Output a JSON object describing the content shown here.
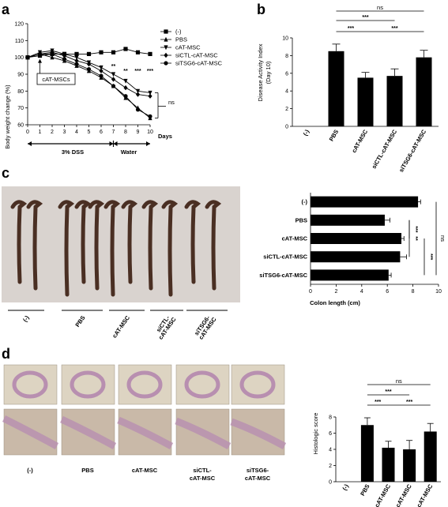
{
  "figure": {
    "panel_letters": [
      "a",
      "b",
      "c",
      "d"
    ]
  },
  "panel_a": {
    "ylabel": "Body weight change (%)",
    "xlabel": "Days",
    "annotation": "cAT-MSCs",
    "dss_label": "3% DSS",
    "water_label": "Water",
    "ns_label": "ns",
    "sig_labels": [
      {
        "day": 7,
        "text": "**"
      },
      {
        "day": 8,
        "text": "**"
      },
      {
        "day": 9,
        "text": "***"
      },
      {
        "day": 10,
        "text": "***"
      }
    ]
  },
  "panel_b": {
    "ylabel": "Disease Activity Index",
    "ylabel2": "(Day 10)",
    "brackets": [
      {
        "from": 1,
        "to": 4,
        "text": "ns"
      },
      {
        "from": 1,
        "to": 3,
        "text": "***"
      },
      {
        "from": 1,
        "to": 2,
        "text": "***"
      },
      {
        "from": 2,
        "to": 4,
        "text": "***"
      }
    ]
  },
  "panel_c": {
    "xlabel": "Colon length (cm)",
    "photo_labels": [
      "(-)",
      "PBS",
      "cAT-MSC",
      "siCTL-\ncAT-MSC",
      "siTSG6-\ncAT-MSC"
    ],
    "brackets": [
      {
        "from": 1,
        "to": 2,
        "text": "***"
      },
      {
        "from": 1,
        "to": 3,
        "text": "**"
      },
      {
        "from": 2,
        "to": 4,
        "text": "***"
      },
      {
        "from": 0,
        "to": 4,
        "text": "ns"
      }
    ]
  },
  "panel_d": {
    "ylabel": "Histologic score",
    "photo_labels": [
      "(-)",
      "PBS",
      "cAT-MSC",
      "siCTL-\ncAT-MSC",
      "siTSG6-\ncAT-MSC"
    ],
    "brackets": [
      {
        "from": 1,
        "to": 4,
        "text": "ns"
      },
      {
        "from": 1,
        "to": 3,
        "text": "***"
      },
      {
        "from": 1,
        "to": 2,
        "text": "***"
      },
      {
        "from": 2,
        "to": 4,
        "text": "***"
      }
    ]
  },
  "colors": {
    "bar": "#000000",
    "photo_bg": "#d9d3cf",
    "colon_dark": "#4a2f23",
    "histo_bg": "#c9b9a8",
    "histo_tissue": "#b88fb0"
  },
  "chart_data": [
    {
      "type": "line",
      "xlabel": "Days",
      "ylabel": "Body weight change (%)",
      "x": [
        0,
        1,
        2,
        3,
        4,
        5,
        6,
        7,
        8,
        9,
        10
      ],
      "xlim": [
        0,
        10
      ],
      "ylim": [
        60,
        120
      ],
      "yticks": [
        60,
        70,
        80,
        90,
        100,
        110,
        120
      ],
      "legend_position": "right",
      "series": [
        {
          "name": "(-)",
          "marker": "square",
          "values": [
            100,
            101,
            102,
            102,
            102,
            102,
            103,
            103,
            105,
            103,
            102
          ]
        },
        {
          "name": "PBS",
          "marker": "triangle-up",
          "values": [
            100,
            102,
            100,
            98,
            95,
            92,
            88,
            83,
            76,
            70,
            64
          ]
        },
        {
          "name": "cAT-MSC",
          "marker": "triangle-down",
          "values": [
            100,
            103,
            104,
            102,
            100,
            97,
            94,
            90,
            86,
            80,
            79
          ]
        },
        {
          "name": "siCTL-cAT-MSC",
          "marker": "diamond",
          "values": [
            100,
            102,
            103,
            101,
            98,
            96,
            92,
            87,
            82,
            78,
            77
          ]
        },
        {
          "name": "siTSG6-cAT-MSC",
          "marker": "circle",
          "values": [
            100,
            102,
            102,
            99,
            96,
            93,
            89,
            83,
            77,
            69,
            65
          ]
        }
      ]
    },
    {
      "type": "bar",
      "ylabel": "Disease Activity Index (Day 10)",
      "categories": [
        "(-)",
        "PBS",
        "cAT-MSC",
        "siCTL-cAT-MSC",
        "siTSG6-cAT-MSC"
      ],
      "values": [
        0,
        8.5,
        5.5,
        5.7,
        7.8
      ],
      "errors": [
        0,
        0.8,
        0.6,
        0.8,
        0.8
      ],
      "ylim": [
        0,
        10
      ],
      "yticks": [
        0,
        2,
        4,
        6,
        8,
        10
      ]
    },
    {
      "type": "bar",
      "orientation": "horizontal",
      "xlabel": "Colon length (cm)",
      "categories": [
        "(-)",
        "PBS",
        "cAT-MSC",
        "siCTL-cAT-MSC",
        "siTSG6-cAT-MSC"
      ],
      "values": [
        8.4,
        5.8,
        7.1,
        7.0,
        6.1
      ],
      "errors": [
        0.2,
        0.4,
        0.2,
        0.5,
        0.2
      ],
      "xlim": [
        0,
        10
      ],
      "xticks": [
        0,
        2,
        4,
        6,
        8,
        10
      ]
    },
    {
      "type": "bar",
      "ylabel": "Histologic score",
      "categories": [
        "(-)",
        "PBS",
        "cAT-MSC",
        "siCTL-cAT-MSC",
        "siTSG6-cAT-MSC"
      ],
      "values": [
        0,
        7.0,
        4.2,
        4.0,
        6.2
      ],
      "errors": [
        0,
        0.9,
        0.8,
        1.1,
        1.0
      ],
      "ylim": [
        0,
        8
      ],
      "yticks": [
        0,
        2,
        4,
        6,
        8
      ]
    }
  ]
}
